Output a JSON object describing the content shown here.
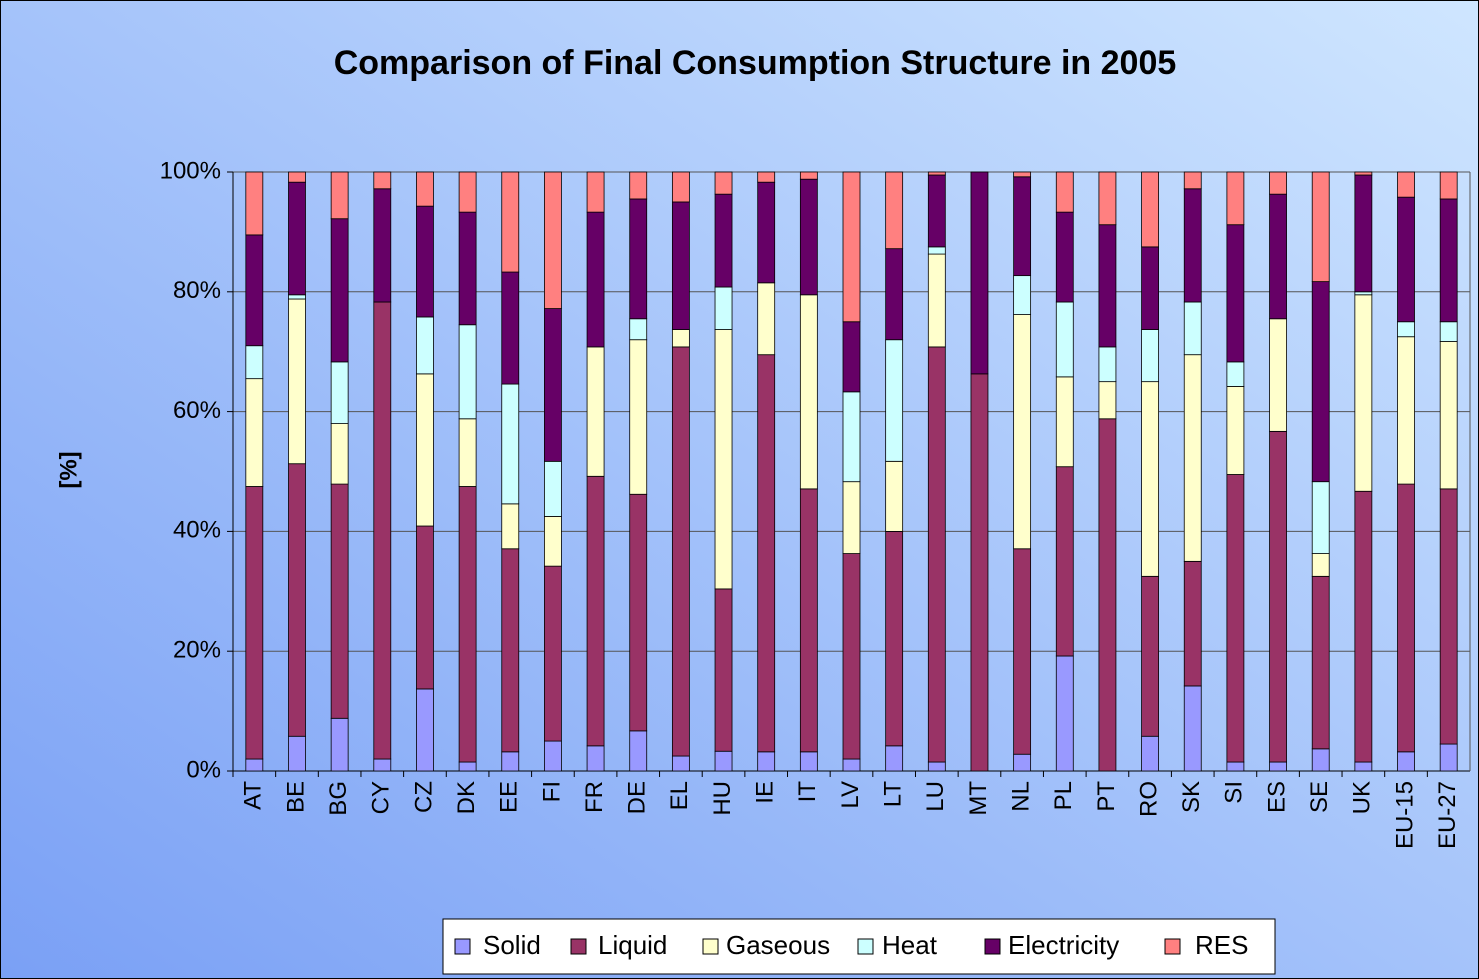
{
  "chart_data": {
    "type": "stacked_bar",
    "title": "Comparison of Final Consumption Structure in 2005",
    "y_label": "[%]",
    "categories": [
      "AT",
      "BE",
      "BG",
      "CY",
      "CZ",
      "DK",
      "EE",
      "FI",
      "FR",
      "DE",
      "EL",
      "HU",
      "IE",
      "IT",
      "LV",
      "LT",
      "LU",
      "MT",
      "NL",
      "PL",
      "PT",
      "RO",
      "SK",
      "SI",
      "ES",
      "SE",
      "UK",
      "EU-15",
      "EU-27"
    ],
    "series": [
      {
        "name": "Solid",
        "color": "#9999ff",
        "values": [
          2,
          5.8,
          8.8,
          2,
          13.7,
          1.5,
          3.2,
          5,
          4.2,
          6.7,
          2.5,
          3.3,
          3.2,
          3.2,
          2,
          4.2,
          1.5,
          0,
          2.8,
          19.2,
          0,
          5.8,
          14.2,
          1.5,
          1.5,
          3.7,
          1.5,
          3.2,
          4.5
        ]
      },
      {
        "name": "Liquid",
        "color": "#993366",
        "values": [
          45.5,
          45.5,
          39.1,
          76.3,
          27.2,
          46,
          33.9,
          29.2,
          45,
          39.5,
          68.3,
          27.1,
          66.3,
          43.9,
          34.3,
          35.8,
          69.3,
          66.3,
          34.3,
          31.6,
          58.8,
          26.7,
          20.8,
          48,
          55.2,
          28.8,
          45.2,
          44.7,
          42.6
        ]
      },
      {
        "name": "Gaseous",
        "color": "#ffffcc",
        "values": [
          18,
          27.5,
          10.1,
          0,
          25.4,
          11.3,
          7.5,
          8.3,
          21.6,
          25.8,
          2.9,
          43.3,
          12,
          32.4,
          12,
          11.7,
          15.5,
          0,
          39.1,
          15,
          6.2,
          32.5,
          34.5,
          14.7,
          18.8,
          3.8,
          32.8,
          24.6,
          24.6
        ]
      },
      {
        "name": "Heat",
        "color": "#ccffff",
        "values": [
          5.5,
          0.7,
          10.3,
          0,
          9.5,
          15.7,
          20,
          9.2,
          0,
          3.5,
          0,
          7.1,
          0,
          0,
          15,
          20.3,
          1.2,
          0,
          6.5,
          12.5,
          5.8,
          8.7,
          8.8,
          4.1,
          0,
          12,
          0.5,
          2.5,
          3.3
        ]
      },
      {
        "name": "Electricity",
        "color": "#660066",
        "values": [
          18.5,
          18.8,
          23.9,
          18.9,
          18.5,
          18.8,
          18.7,
          25.5,
          22.5,
          20,
          21.3,
          15.5,
          16.8,
          19.3,
          11.7,
          15.2,
          12,
          33.7,
          16.5,
          15,
          20.4,
          13.8,
          18.9,
          22.9,
          20.8,
          33.4,
          19.5,
          20.8,
          20.5
        ]
      },
      {
        "name": "RES",
        "color": "#ff8080",
        "values": [
          10.5,
          1.7,
          7.8,
          2.8,
          5.7,
          6.7,
          16.7,
          22.8,
          6.7,
          4.5,
          5,
          3.7,
          1.7,
          1.2,
          25,
          12.8,
          0.5,
          0,
          0.8,
          6.7,
          8.8,
          12.5,
          2.8,
          8.8,
          3.7,
          18.3,
          0.5,
          4.2,
          4.5
        ]
      }
    ],
    "ylim": [
      0,
      100
    ],
    "yticks": [
      {
        "value": 0,
        "label": "0%"
      },
      {
        "value": 20,
        "label": "20%"
      },
      {
        "value": 40,
        "label": "40%"
      },
      {
        "value": 60,
        "label": "60%"
      },
      {
        "value": 80,
        "label": "80%"
      },
      {
        "value": 100,
        "label": "100%"
      }
    ],
    "grid": true
  }
}
